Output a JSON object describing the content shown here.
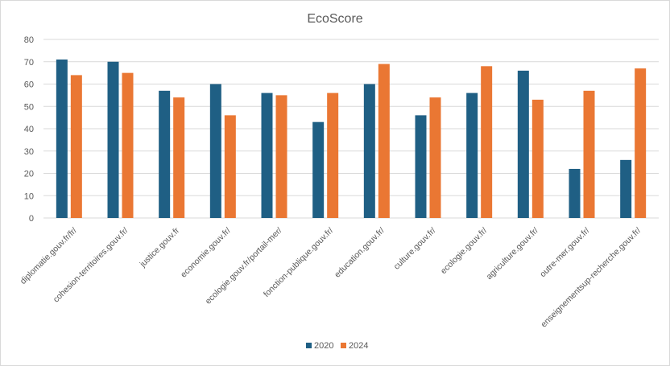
{
  "chart_data": {
    "type": "bar",
    "title": "EcoScore",
    "xlabel": "",
    "ylabel": "",
    "ylim": [
      0,
      80
    ],
    "yticks": [
      0,
      10,
      20,
      30,
      40,
      50,
      60,
      70,
      80
    ],
    "grid": true,
    "legend_position": "bottom",
    "categories": [
      "diplomatie.gouv.fr/fr/",
      "cohesion-territoires.gouv.fr/",
      "justice.gouv.fr",
      "economie.gouv.fr/",
      "ecologie.gouv.fr/portail-mer/",
      "fonction-publique.gouv.fr/",
      "education.gouv.fr/",
      "culture.gouv.fr/",
      "ecologie.gouv.fr/",
      "agriculture.gouv.fr/",
      "outre-mer.gouv.fr/",
      "enseignementsup-recherche.gouv.fr/"
    ],
    "series": [
      {
        "name": "2020",
        "color": "#1f5f84",
        "values": [
          71,
          70,
          57,
          60,
          56,
          43,
          60,
          46,
          56,
          66,
          22,
          26
        ]
      },
      {
        "name": "2024",
        "color": "#ea7733",
        "values": [
          64,
          65,
          54,
          46,
          55,
          56,
          69,
          54,
          68,
          53,
          57,
          67
        ]
      }
    ]
  }
}
